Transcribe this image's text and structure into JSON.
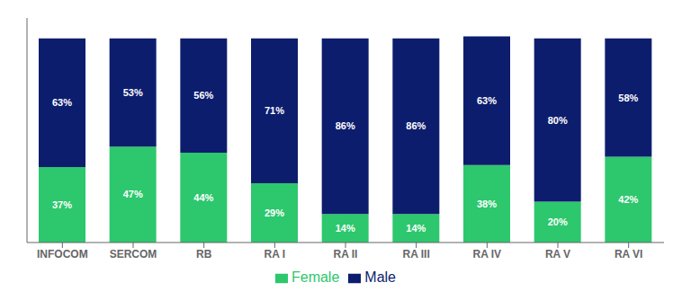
{
  "chart_data": {
    "type": "bar",
    "stacked": true,
    "categories": [
      "INFOCOM",
      "SERCOM",
      "RB",
      "RA I",
      "RA II",
      "RA III",
      "RA IV",
      "RA V",
      "RA VI"
    ],
    "series": [
      {
        "name": "Female",
        "color": "#2dc76d",
        "values": [
          37,
          47,
          44,
          29,
          14,
          14,
          38,
          20,
          42
        ],
        "value_labels": [
          "37%",
          "47%",
          "44%",
          "29%",
          "14%",
          "14%",
          "38%",
          "20%",
          "42%"
        ]
      },
      {
        "name": "Male",
        "color": "#0d1d6e",
        "values": [
          63,
          53,
          56,
          71,
          86,
          86,
          63,
          80,
          58
        ],
        "value_labels": [
          "63%",
          "53%",
          "56%",
          "71%",
          "86%",
          "86%",
          "63%",
          "80%",
          "58%"
        ]
      }
    ],
    "ylim": [
      0,
      110
    ],
    "tick_labels": "x",
    "data_labels": true,
    "legend": "bottom",
    "grid": false
  }
}
